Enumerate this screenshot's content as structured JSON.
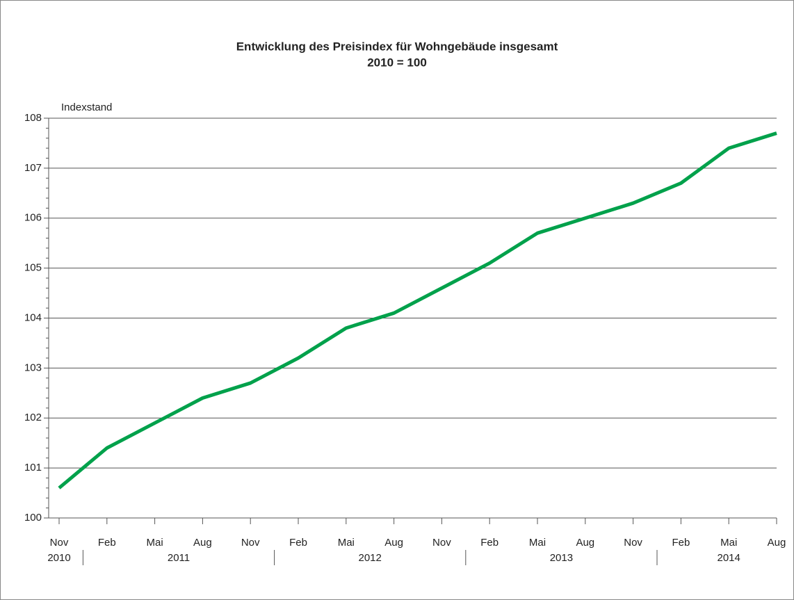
{
  "chart_data": {
    "type": "line",
    "title": "Entwicklung des Preisindex für Wohngebäude insgesamt",
    "subtitle": "2010 = 100",
    "y_label": "Indexstand",
    "categories": [
      "Nov",
      "Feb",
      "Mai",
      "Aug",
      "Nov",
      "Feb",
      "Mai",
      "Aug",
      "Nov",
      "Feb",
      "Mai",
      "Aug",
      "Nov",
      "Feb",
      "Mai",
      "Aug"
    ],
    "x_groups": [
      {
        "label": "2010",
        "start": 0,
        "end": 0
      },
      {
        "label": "2011",
        "start": 1,
        "end": 4
      },
      {
        "label": "2012",
        "start": 5,
        "end": 8
      },
      {
        "label": "2013",
        "start": 9,
        "end": 12
      },
      {
        "label": "2014",
        "start": 13,
        "end": 15
      }
    ],
    "series": [
      {
        "color": "#00a14b",
        "values": [
          100.6,
          101.4,
          101.9,
          102.4,
          102.7,
          103.2,
          103.8,
          104.1,
          104.6,
          105.1,
          105.7,
          106.0,
          106.3,
          106.7,
          107.4,
          107.7
        ]
      }
    ],
    "ylim": [
      100,
      108
    ],
    "yticks": [
      100,
      101,
      102,
      103,
      104,
      105,
      106,
      107,
      108
    ],
    "grid": true
  }
}
